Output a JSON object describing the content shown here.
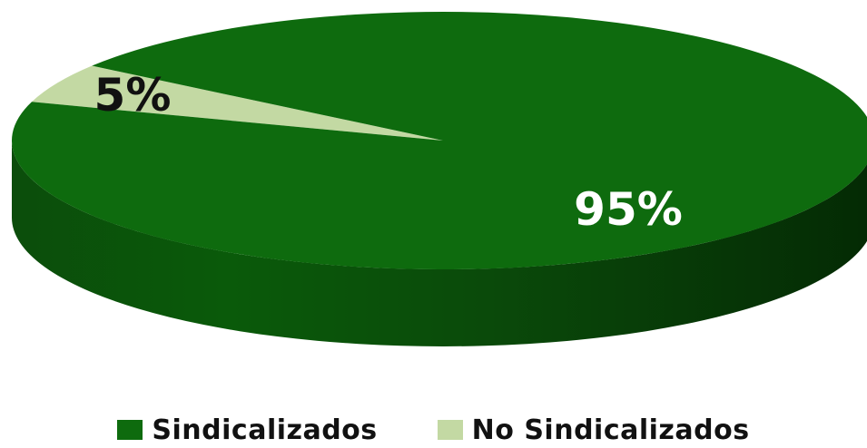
{
  "chart_data": {
    "type": "pie",
    "style": "3d",
    "title": "",
    "slices": [
      {
        "label": "Sindicalizados",
        "value": 95,
        "display": "95%",
        "color": "#0e6b0e",
        "label_color": "#ffffff"
      },
      {
        "label": "No Sindicalizados",
        "value": 5,
        "display": "5%",
        "color": "#c3d9a3",
        "label_color": "#111111"
      }
    ],
    "legend": {
      "placement": "bottom"
    }
  }
}
